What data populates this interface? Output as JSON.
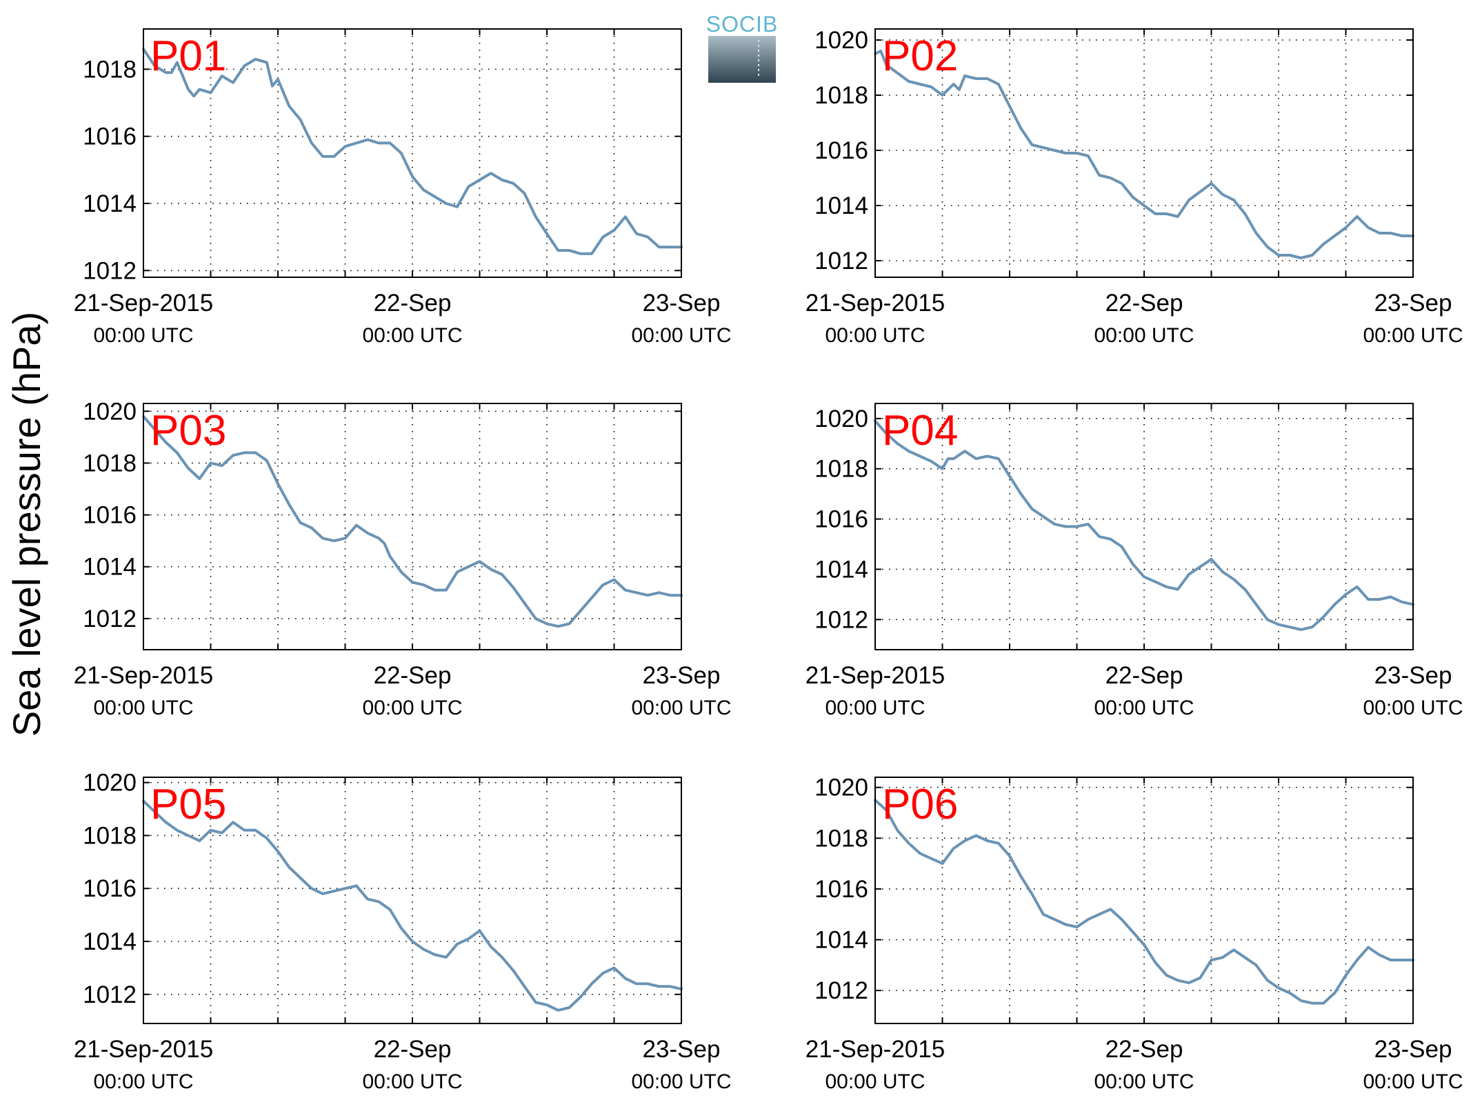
{
  "figure": {
    "ylabel": "Sea level pressure (hPa)",
    "logo_text": "SOCIB"
  },
  "colors": {
    "line": "#6a93b4",
    "panel_label": "#ff0000",
    "axis": "#000000"
  },
  "chart_data": [
    {
      "type": "line",
      "title": "P01",
      "xlim": [
        0,
        48
      ],
      "ylim": [
        1011.8,
        1019.2
      ],
      "yticks": [
        1012,
        1014,
        1016,
        1018
      ],
      "xticks": [
        {
          "x": 0,
          "date": "21-Sep-2015",
          "time": "00:00 UTC"
        },
        {
          "x": 24,
          "date": "22-Sep",
          "time": "00:00 UTC"
        },
        {
          "x": 48,
          "date": "23-Sep",
          "time": "00:00 UTC"
        }
      ],
      "grid": true,
      "x": [
        0,
        1,
        2,
        2.5,
        3,
        4,
        4.5,
        5,
        6,
        7,
        8,
        9,
        10,
        11,
        11.5,
        12,
        13,
        14,
        15,
        16,
        17,
        18,
        19,
        20,
        21,
        22,
        23,
        24,
        25,
        26,
        27,
        28,
        29,
        30,
        31,
        32,
        33,
        34,
        35,
        36,
        37,
        38,
        39,
        40,
        41,
        42,
        43,
        44,
        45,
        46,
        47,
        48
      ],
      "y": [
        1018.6,
        1018.1,
        1017.9,
        1017.9,
        1018.2,
        1017.4,
        1017.2,
        1017.4,
        1017.3,
        1017.8,
        1017.6,
        1018.1,
        1018.3,
        1018.2,
        1017.5,
        1017.7,
        1016.9,
        1016.5,
        1015.8,
        1015.4,
        1015.4,
        1015.7,
        1015.8,
        1015.9,
        1015.8,
        1015.8,
        1015.5,
        1014.8,
        1014.4,
        1014.2,
        1014.0,
        1013.9,
        1014.5,
        1014.7,
        1014.9,
        1014.7,
        1014.6,
        1014.3,
        1013.6,
        1013.1,
        1012.6,
        1012.6,
        1012.5,
        1012.5,
        1013.0,
        1013.2,
        1013.6,
        1013.1,
        1013.0,
        1012.7,
        1012.7,
        1012.7
      ]
    },
    {
      "type": "line",
      "title": "P02",
      "xlim": [
        0,
        48
      ],
      "ylim": [
        1011.4,
        1020.4
      ],
      "yticks": [
        1012,
        1014,
        1016,
        1018,
        1020
      ],
      "xticks": [
        {
          "x": 0,
          "date": "21-Sep-2015",
          "time": "00:00 UTC"
        },
        {
          "x": 24,
          "date": "22-Sep",
          "time": "00:00 UTC"
        },
        {
          "x": 48,
          "date": "23-Sep",
          "time": "00:00 UTC"
        }
      ],
      "grid": true,
      "x": [
        0,
        0.5,
        1,
        2,
        3,
        4,
        5,
        6,
        6.5,
        7,
        7.5,
        8,
        9,
        10,
        11,
        12,
        13,
        14,
        15,
        16,
        17,
        18,
        19,
        20,
        21,
        22,
        23,
        24,
        25,
        26,
        27,
        28,
        29,
        30,
        31,
        32,
        33,
        34,
        35,
        36,
        37,
        38,
        39,
        40,
        41,
        42,
        43,
        44,
        45,
        46,
        47,
        48
      ],
      "y": [
        1019.5,
        1019.6,
        1019.1,
        1018.8,
        1018.5,
        1018.4,
        1018.3,
        1018.0,
        1018.2,
        1018.4,
        1018.2,
        1018.7,
        1018.6,
        1018.6,
        1018.4,
        1017.6,
        1016.8,
        1016.2,
        1016.1,
        1016.0,
        1015.9,
        1015.9,
        1015.8,
        1015.1,
        1015.0,
        1014.8,
        1014.3,
        1014.0,
        1013.7,
        1013.7,
        1013.6,
        1014.2,
        1014.5,
        1014.8,
        1014.4,
        1014.2,
        1013.7,
        1013.0,
        1012.5,
        1012.2,
        1012.2,
        1012.1,
        1012.2,
        1012.6,
        1012.9,
        1013.2,
        1013.6,
        1013.2,
        1013.0,
        1013.0,
        1012.9,
        1012.9
      ]
    },
    {
      "type": "line",
      "title": "P03",
      "xlim": [
        0,
        48
      ],
      "ylim": [
        1010.8,
        1020.3
      ],
      "yticks": [
        1012,
        1014,
        1016,
        1018,
        1020
      ],
      "xticks": [
        {
          "x": 0,
          "date": "21-Sep-2015",
          "time": "00:00 UTC"
        },
        {
          "x": 24,
          "date": "22-Sep",
          "time": "00:00 UTC"
        },
        {
          "x": 48,
          "date": "23-Sep",
          "time": "00:00 UTC"
        }
      ],
      "grid": true,
      "x": [
        0,
        1,
        2,
        3,
        4,
        5,
        6,
        7,
        8,
        9,
        10,
        11,
        12,
        13,
        14,
        15,
        16,
        17,
        18,
        19,
        20,
        21,
        21.5,
        22,
        23,
        24,
        25,
        26,
        27,
        28,
        29,
        30,
        31,
        32,
        33,
        34,
        35,
        36,
        37,
        38,
        39,
        40,
        41,
        42,
        43,
        44,
        45,
        46,
        47,
        48
      ],
      "y": [
        1019.8,
        1019.3,
        1018.8,
        1018.4,
        1017.8,
        1017.4,
        1018.0,
        1017.9,
        1018.3,
        1018.4,
        1018.4,
        1018.1,
        1017.2,
        1016.4,
        1015.7,
        1015.5,
        1015.1,
        1015.0,
        1015.1,
        1015.6,
        1015.3,
        1015.1,
        1014.9,
        1014.4,
        1013.8,
        1013.4,
        1013.3,
        1013.1,
        1013.1,
        1013.8,
        1014.0,
        1014.2,
        1013.9,
        1013.7,
        1013.2,
        1012.6,
        1012.0,
        1011.8,
        1011.7,
        1011.8,
        1012.3,
        1012.8,
        1013.3,
        1013.5,
        1013.1,
        1013.0,
        1012.9,
        1013.0,
        1012.9,
        1012.9
      ]
    },
    {
      "type": "line",
      "title": "P04",
      "xlim": [
        0,
        48
      ],
      "ylim": [
        1010.8,
        1020.6
      ],
      "yticks": [
        1012,
        1014,
        1016,
        1018,
        1020
      ],
      "xticks": [
        {
          "x": 0,
          "date": "21-Sep-2015",
          "time": "00:00 UTC"
        },
        {
          "x": 24,
          "date": "22-Sep",
          "time": "00:00 UTC"
        },
        {
          "x": 48,
          "date": "23-Sep",
          "time": "00:00 UTC"
        }
      ],
      "grid": true,
      "x": [
        0,
        1,
        2,
        3,
        4,
        5,
        6,
        6.5,
        7,
        8,
        9,
        10,
        11,
        12,
        13,
        14,
        15,
        16,
        17,
        18,
        19,
        20,
        21,
        22,
        23,
        24,
        25,
        26,
        27,
        28,
        29,
        30,
        31,
        32,
        33,
        34,
        35,
        36,
        37,
        38,
        39,
        40,
        41,
        42,
        43,
        44,
        45,
        46,
        47,
        48
      ],
      "y": [
        1019.9,
        1019.4,
        1019.0,
        1018.7,
        1018.5,
        1018.3,
        1018.0,
        1018.4,
        1018.4,
        1018.7,
        1018.4,
        1018.5,
        1018.4,
        1017.7,
        1017.0,
        1016.4,
        1016.1,
        1015.8,
        1015.7,
        1015.7,
        1015.8,
        1015.3,
        1015.2,
        1014.9,
        1014.2,
        1013.7,
        1013.5,
        1013.3,
        1013.2,
        1013.8,
        1014.1,
        1014.4,
        1013.9,
        1013.6,
        1013.2,
        1012.6,
        1012.0,
        1011.8,
        1011.7,
        1011.6,
        1011.7,
        1012.1,
        1012.6,
        1013.0,
        1013.3,
        1012.8,
        1012.8,
        1012.9,
        1012.7,
        1012.6
      ]
    },
    {
      "type": "line",
      "title": "P05",
      "xlim": [
        0,
        48
      ],
      "ylim": [
        1010.9,
        1020.2
      ],
      "yticks": [
        1012,
        1014,
        1016,
        1018,
        1020
      ],
      "xticks": [
        {
          "x": 0,
          "date": "21-Sep-2015",
          "time": "00:00 UTC"
        },
        {
          "x": 24,
          "date": "22-Sep",
          "time": "00:00 UTC"
        },
        {
          "x": 48,
          "date": "23-Sep",
          "time": "00:00 UTC"
        }
      ],
      "grid": true,
      "x": [
        0,
        1,
        2,
        3,
        4,
        5,
        6,
        7,
        8,
        9,
        10,
        11,
        12,
        13,
        14,
        15,
        16,
        17,
        18,
        19,
        20,
        21,
        22,
        23,
        24,
        25,
        26,
        27,
        28,
        29,
        30,
        31,
        32,
        33,
        34,
        35,
        36,
        37,
        38,
        39,
        40,
        41,
        42,
        43,
        44,
        45,
        46,
        47,
        48
      ],
      "y": [
        1019.3,
        1018.9,
        1018.5,
        1018.2,
        1018.0,
        1017.8,
        1018.2,
        1018.1,
        1018.5,
        1018.2,
        1018.2,
        1017.9,
        1017.4,
        1016.8,
        1016.4,
        1016.0,
        1015.8,
        1015.9,
        1016.0,
        1016.1,
        1015.6,
        1015.5,
        1015.2,
        1014.5,
        1014.0,
        1013.7,
        1013.5,
        1013.4,
        1013.9,
        1014.1,
        1014.4,
        1013.8,
        1013.4,
        1012.9,
        1012.3,
        1011.7,
        1011.6,
        1011.4,
        1011.5,
        1011.9,
        1012.4,
        1012.8,
        1013.0,
        1012.6,
        1012.4,
        1012.4,
        1012.3,
        1012.3,
        1012.2
      ]
    },
    {
      "type": "line",
      "title": "P06",
      "xlim": [
        0,
        48
      ],
      "ylim": [
        1010.7,
        1020.4
      ],
      "yticks": [
        1012,
        1014,
        1016,
        1018,
        1020
      ],
      "xticks": [
        {
          "x": 0,
          "date": "21-Sep-2015",
          "time": "00:00 UTC"
        },
        {
          "x": 24,
          "date": "22-Sep",
          "time": "00:00 UTC"
        },
        {
          "x": 48,
          "date": "23-Sep",
          "time": "00:00 UTC"
        }
      ],
      "grid": true,
      "x": [
        0,
        1,
        2,
        3,
        4,
        5,
        6,
        7,
        8,
        9,
        10,
        11,
        12,
        13,
        14,
        15,
        16,
        17,
        18,
        19,
        20,
        21,
        22,
        23,
        24,
        25,
        26,
        27,
        28,
        29,
        30,
        31,
        32,
        33,
        34,
        35,
        36,
        37,
        38,
        39,
        40,
        41,
        42,
        43,
        44,
        45,
        46,
        47,
        48
      ],
      "y": [
        1019.5,
        1019.1,
        1018.3,
        1017.8,
        1017.4,
        1017.2,
        1017.0,
        1017.6,
        1017.9,
        1018.1,
        1017.9,
        1017.8,
        1017.3,
        1016.5,
        1015.8,
        1015.0,
        1014.8,
        1014.6,
        1014.5,
        1014.8,
        1015.0,
        1015.2,
        1014.8,
        1014.3,
        1013.8,
        1013.1,
        1012.6,
        1012.4,
        1012.3,
        1012.5,
        1013.2,
        1013.3,
        1013.6,
        1013.3,
        1013.0,
        1012.4,
        1012.1,
        1011.9,
        1011.6,
        1011.5,
        1011.5,
        1011.9,
        1012.6,
        1013.2,
        1013.7,
        1013.4,
        1013.2,
        1013.2,
        1013.2
      ]
    }
  ]
}
